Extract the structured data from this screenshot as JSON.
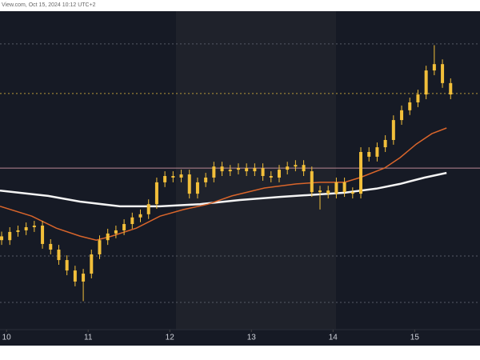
{
  "header": {
    "text": "View.com, Oct 15, 2024 10:12 UTC+2"
  },
  "chart_data": {
    "type": "candlestick",
    "xlim": [
      9.92,
      15.8
    ],
    "xticks": [
      10,
      11,
      12,
      13,
      14,
      15
    ],
    "ylim": [
      0,
      100
    ],
    "color": "#f2bf3a",
    "x": [
      9.94,
      10.04,
      10.14,
      10.24,
      10.34,
      10.44,
      10.54,
      10.64,
      10.74,
      10.84,
      10.94,
      11.04,
      11.14,
      11.24,
      11.34,
      11.44,
      11.54,
      11.64,
      11.74,
      11.84,
      11.94,
      12.04,
      12.14,
      12.24,
      12.34,
      12.44,
      12.54,
      12.64,
      12.74,
      12.84,
      12.94,
      13.04,
      13.14,
      13.24,
      13.34,
      13.44,
      13.54,
      13.64,
      13.74,
      13.84,
      13.94,
      14.04,
      14.14,
      14.24,
      14.34,
      14.44,
      14.54,
      14.64,
      14.74,
      14.84,
      14.94,
      15.04,
      15.14,
      15.24,
      15.34,
      15.44
    ],
    "open": [
      29.0,
      27.8,
      30.4,
      30.9,
      31.9,
      32.4,
      26.6,
      24.8,
      21.5,
      18.2,
      14.7,
      17.2,
      23.3,
      27.8,
      29.9,
      30.9,
      32.9,
      35.0,
      36.0,
      39.2,
      46.1,
      48.1,
      47.6,
      48.6,
      42.5,
      46.1,
      47.6,
      51.1,
      49.6,
      50.1,
      50.6,
      49.6,
      50.6,
      48.1,
      47.6,
      50.1,
      51.1,
      51.6,
      49.6,
      43.0,
      43.5,
      42.5,
      46.1,
      43.0,
      42.5,
      55.7,
      54.2,
      57.2,
      59.5,
      65.8,
      68.9,
      71.4,
      73.9,
      81.5,
      83.5,
      77.5
    ],
    "high": [
      30.5,
      31.9,
      32.4,
      33.4,
      33.9,
      33.9,
      28.1,
      26.3,
      23.0,
      19.7,
      18.7,
      24.8,
      29.3,
      31.4,
      32.4,
      34.4,
      36.5,
      37.5,
      40.7,
      47.6,
      49.6,
      49.6,
      50.1,
      50.1,
      47.6,
      49.1,
      52.6,
      52.6,
      51.6,
      52.1,
      52.1,
      52.1,
      52.1,
      49.6,
      51.6,
      52.6,
      53.1,
      53.1,
      51.1,
      45.0,
      45.0,
      47.6,
      47.6,
      44.5,
      57.2,
      57.2,
      58.7,
      61.0,
      67.3,
      70.4,
      72.9,
      75.4,
      83.0,
      89.5,
      85.0,
      79.0
    ],
    "low": [
      26.3,
      26.3,
      28.9,
      29.4,
      30.4,
      25.1,
      23.3,
      20.0,
      16.7,
      13.2,
      8.5,
      15.7,
      21.8,
      26.3,
      28.4,
      29.4,
      31.4,
      33.5,
      34.5,
      37.7,
      44.6,
      46.1,
      46.1,
      41.0,
      41.0,
      44.6,
      46.1,
      48.1,
      48.1,
      48.6,
      48.1,
      48.1,
      46.6,
      46.1,
      46.1,
      48.6,
      49.6,
      48.1,
      41.5,
      37.5,
      41.0,
      41.0,
      41.5,
      41.0,
      41.0,
      52.7,
      52.7,
      55.7,
      58.0,
      64.3,
      67.4,
      69.9,
      72.4,
      80.0,
      76.0,
      72.4
    ],
    "close": [
      27.8,
      30.4,
      30.9,
      31.9,
      32.4,
      26.6,
      24.8,
      21.5,
      18.2,
      14.7,
      17.2,
      23.3,
      27.8,
      29.9,
      30.9,
      32.9,
      35.0,
      36.0,
      39.2,
      46.1,
      48.1,
      47.6,
      48.6,
      42.5,
      46.1,
      47.6,
      51.1,
      49.6,
      50.1,
      50.6,
      49.6,
      50.6,
      48.1,
      47.6,
      50.1,
      51.1,
      51.6,
      49.6,
      43.0,
      43.5,
      42.5,
      46.1,
      43.0,
      42.5,
      55.7,
      54.2,
      57.2,
      59.5,
      65.8,
      68.9,
      71.4,
      73.9,
      81.5,
      83.5,
      77.5,
      73.9
    ],
    "lines": [
      {
        "color": "#f4f4f4",
        "x": [
          9.92,
          10.51,
          10.9,
          11.39,
          11.88,
          12.37,
          12.86,
          13.35,
          13.84,
          14.14,
          14.53,
          14.82,
          15.12,
          15.39
        ],
        "values": [
          43.5,
          41.8,
          40.0,
          38.5,
          38.5,
          39.2,
          40.5,
          41.5,
          42.3,
          42.8,
          44.1,
          45.6,
          47.6,
          49.1
        ]
      },
      {
        "color": "#d9652b",
        "x": [
          9.92,
          10.31,
          10.61,
          10.9,
          11.1,
          11.29,
          11.59,
          11.88,
          12.17,
          12.47,
          12.76,
          13.16,
          13.55,
          13.84,
          14.14,
          14.33,
          14.63,
          14.82,
          15.02,
          15.21,
          15.39
        ],
        "values": [
          38.5,
          35.4,
          31.6,
          29.1,
          27.8,
          29.1,
          31.6,
          35.4,
          37.5,
          39.2,
          41.8,
          44.3,
          45.6,
          46.1,
          46.1,
          47.6,
          50.6,
          53.9,
          58.2,
          61.5,
          63.3
        ]
      }
    ],
    "hlines": [
      {
        "value": 50.6,
        "color": "#b98793",
        "style": "solid"
      },
      {
        "value": 74.2,
        "color": "#b89a3a",
        "style": "dotted"
      },
      {
        "value": 89.9,
        "color": "#555a66",
        "style": "dotted"
      },
      {
        "value": 22.8,
        "color": "#555a66",
        "style": "dotted"
      },
      {
        "value": 8.1,
        "color": "#555a66",
        "style": "dotted"
      }
    ]
  }
}
